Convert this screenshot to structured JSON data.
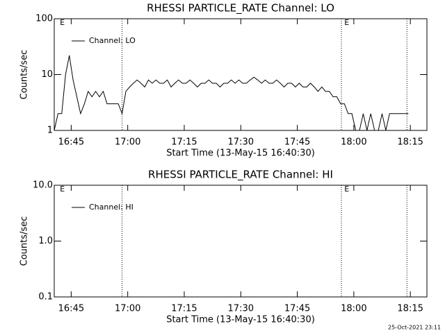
{
  "chart_data": [
    {
      "type": "line",
      "title": "RHESSI PARTICLE_RATE Channel: LO",
      "x_label": "Start Time (13-May-15 16:40:30)",
      "y_label": "Counts/sec",
      "ylog": true,
      "legend": "upper left",
      "xlim": [
        1000.5,
        1099.4
      ],
      "xticks": [
        {
          "value": 1005,
          "label": "16:45"
        },
        {
          "value": 1020,
          "label": "17:00"
        },
        {
          "value": 1035,
          "label": "17:15"
        },
        {
          "value": 1050,
          "label": "17:30"
        },
        {
          "value": 1065,
          "label": "17:45"
        },
        {
          "value": 1080,
          "label": "18:00"
        },
        {
          "value": 1095,
          "label": "18:15"
        }
      ],
      "ylim": [
        1,
        100
      ],
      "yticks": [
        100,
        10,
        1
      ],
      "vlines": [
        1018.5,
        1076.7,
        1094.1
      ],
      "annotations": [
        {
          "x": 1002,
          "text": "E"
        },
        {
          "x": 1077.5,
          "text": "E"
        }
      ],
      "x": [
        1000.5,
        1001.5,
        1002.5,
        1003.5,
        1004.5,
        1005.5,
        1006.5,
        1007.5,
        1008.5,
        1009.5,
        1010.5,
        1011.5,
        1012.5,
        1013.5,
        1014.5,
        1015.5,
        1016.5,
        1017.5,
        1018.5,
        1019.5,
        1020.5,
        1021.5,
        1022.5,
        1023.5,
        1024.5,
        1025.5,
        1026.5,
        1027.5,
        1028.5,
        1029.5,
        1030.5,
        1031.5,
        1032.5,
        1033.5,
        1034.5,
        1035.5,
        1036.5,
        1037.5,
        1038.5,
        1039.5,
        1040.5,
        1041.5,
        1042.5,
        1043.5,
        1044.5,
        1045.5,
        1046.5,
        1047.5,
        1048.5,
        1049.5,
        1050.5,
        1051.5,
        1052.5,
        1053.5,
        1054.5,
        1055.5,
        1056.5,
        1057.5,
        1058.5,
        1059.5,
        1060.5,
        1061.5,
        1062.5,
        1063.5,
        1064.5,
        1065.5,
        1066.5,
        1067.5,
        1068.5,
        1069.5,
        1070.5,
        1071.5,
        1072.5,
        1073.5,
        1074.5,
        1075.5,
        1076.5,
        1077.5,
        1078.5,
        1079.5,
        1080.5,
        1081.5,
        1082.5,
        1083.5,
        1084.5,
        1085.5,
        1086.5,
        1087.5,
        1088.5,
        1089.5,
        1090.5,
        1091.5,
        1092.5,
        1093.5,
        1094.5
      ],
      "series": [
        {
          "name": "Channel: LO",
          "color": "#000000",
          "values": [
            1,
            2,
            2,
            10,
            22,
            8,
            4,
            2,
            3,
            5,
            4,
            5,
            4,
            5,
            3,
            3,
            3,
            3,
            2,
            5,
            6,
            7,
            8,
            7,
            6,
            8,
            7,
            8,
            7,
            7,
            8,
            6,
            7,
            8,
            7,
            7,
            8,
            7,
            6,
            7,
            7,
            8,
            7,
            7,
            6,
            7,
            7,
            8,
            7,
            8,
            7,
            7,
            8,
            9,
            8,
            7,
            8,
            7,
            7,
            8,
            7,
            6,
            7,
            7,
            6,
            7,
            6,
            6,
            7,
            6,
            5,
            6,
            5,
            5,
            4,
            4,
            3,
            3,
            2,
            2,
            1,
            1,
            2,
            1,
            2,
            1,
            1,
            2,
            1,
            2,
            2,
            2,
            2,
            2,
            2
          ]
        }
      ]
    },
    {
      "type": "line",
      "title": "RHESSI PARTICLE_RATE Channel: HI",
      "x_label": "Start Time (13-May-15 16:40:30)",
      "y_label": "Counts/sec",
      "ylog": true,
      "legend": "upper left",
      "xlim": [
        1000.5,
        1099.4
      ],
      "xticks": [
        {
          "value": 1005,
          "label": "16:45"
        },
        {
          "value": 1020,
          "label": "17:00"
        },
        {
          "value": 1035,
          "label": "17:15"
        },
        {
          "value": 1050,
          "label": "17:30"
        },
        {
          "value": 1065,
          "label": "17:45"
        },
        {
          "value": 1080,
          "label": "18:00"
        },
        {
          "value": 1095,
          "label": "18:15"
        }
      ],
      "ylim": [
        0.1,
        10
      ],
      "yticks": [
        {
          "value": 10,
          "label": "10.0"
        },
        {
          "value": 1,
          "label": "1.0"
        },
        0.1
      ],
      "vlines": [
        1018.5,
        1076.7,
        1094.1
      ],
      "annotations": [
        {
          "x": 1002,
          "text": "E"
        },
        {
          "x": 1077.5,
          "text": "E"
        }
      ],
      "x": [],
      "series": [
        {
          "name": "Channel: HI",
          "color": "#000000",
          "values": []
        }
      ]
    }
  ],
  "footer": "25-Oct-2021 23:11"
}
